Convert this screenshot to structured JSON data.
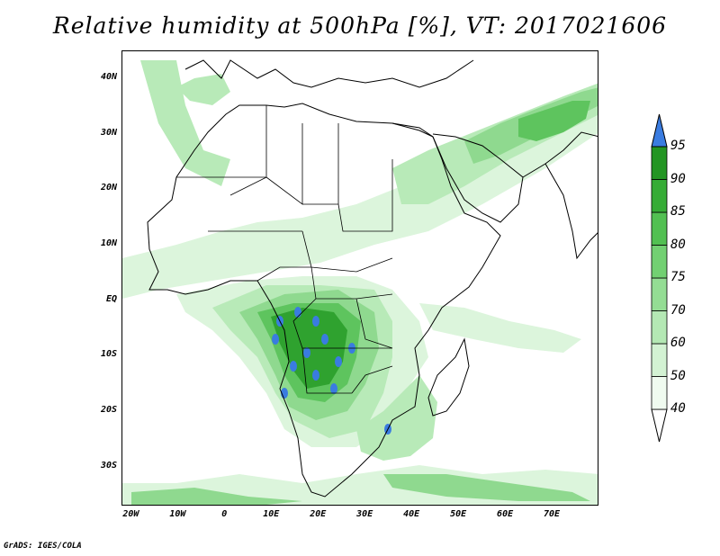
{
  "title": "Relative humidity at 500hPa [%], VT: 2017021606",
  "credit": "GrADS: IGES/COLA",
  "map": {
    "projection": "latlon",
    "lon_range": [
      -22,
      80
    ],
    "lat_range": [
      -37,
      45
    ],
    "lat_ticks": [
      {
        "lat": 40,
        "label": "40N"
      },
      {
        "lat": 30,
        "label": "30N"
      },
      {
        "lat": 20,
        "label": "20N"
      },
      {
        "lat": 10,
        "label": "10N"
      },
      {
        "lat": 0,
        "label": "EQ"
      },
      {
        "lat": -10,
        "label": "10S"
      },
      {
        "lat": -20,
        "label": "20S"
      },
      {
        "lat": -30,
        "label": "30S"
      }
    ],
    "lon_ticks": [
      {
        "lon": -20,
        "label": "20W"
      },
      {
        "lon": -10,
        "label": "10W"
      },
      {
        "lon": 0,
        "label": "0"
      },
      {
        "lon": 10,
        "label": "10E"
      },
      {
        "lon": 20,
        "label": "20E"
      },
      {
        "lon": 30,
        "label": "30E"
      },
      {
        "lon": 40,
        "label": "40E"
      },
      {
        "lon": 50,
        "label": "50E"
      },
      {
        "lon": 60,
        "label": "60E"
      },
      {
        "lon": 70,
        "label": "70E"
      }
    ]
  },
  "colorbar": {
    "levels": [
      "40",
      "50",
      "60",
      "70",
      "75",
      "80",
      "85",
      "90",
      "95"
    ],
    "colors": [
      "#f0fbf0",
      "#d3f2d3",
      "#b4e8b4",
      "#94dd94",
      "#72d072",
      "#52c052",
      "#36ac36",
      "#239523",
      "#3a7ce0"
    ],
    "above_color": "#3a7ce0"
  },
  "field_colors": {
    "rh50": "#dcf5dc",
    "rh60": "#b8eab8",
    "rh70": "#8fd98f",
    "rh80": "#5ec45e",
    "rh90": "#2fa22f",
    "rh95": "#3a7ce0"
  }
}
